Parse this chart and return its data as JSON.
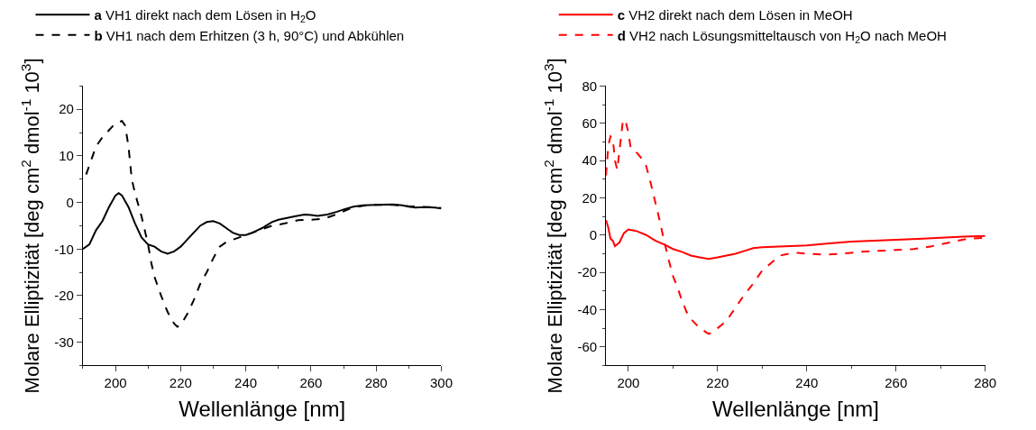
{
  "chart_data": [
    {
      "type": "line",
      "xlabel": "Wellenlänge [nm]",
      "ylabel": "Molare Elliptizität [deg cm$^{2}$ dmol$^{-1}$ 10$^{3}$]",
      "xlim": [
        190,
        300
      ],
      "xticks": [
        200,
        220,
        240,
        260,
        280,
        300
      ],
      "ylim": [
        -35,
        25
      ],
      "yticks": [
        -30,
        -20,
        -10,
        0,
        10,
        20
      ],
      "legend": "top",
      "series": [
        {
          "name": "a VH1 direkt nach dem Lösen in H$_{2}$O",
          "color": "#000000",
          "line_style": "solid",
          "x": [
            190,
            192,
            194,
            196,
            198,
            200,
            201,
            202,
            204,
            206,
            208,
            210,
            212,
            214,
            216,
            218,
            220,
            222,
            224,
            226,
            228,
            230,
            232,
            234,
            236,
            238,
            240,
            242,
            245,
            248,
            250,
            255,
            258,
            260,
            262,
            265,
            268,
            270,
            273,
            276,
            280,
            285,
            288,
            290,
            292,
            295,
            298,
            300
          ],
          "values": [
            -10,
            -9,
            -6,
            -4,
            -1,
            1.5,
            2,
            1.5,
            -1,
            -4.5,
            -7.5,
            -9,
            -9.5,
            -10.5,
            -11,
            -10.5,
            -9.5,
            -8,
            -6.5,
            -5,
            -4.2,
            -4,
            -4.5,
            -5.5,
            -6.5,
            -7,
            -7,
            -6.5,
            -5.5,
            -4.2,
            -3.7,
            -3,
            -2.6,
            -2.7,
            -2.9,
            -2.6,
            -2,
            -1.5,
            -0.9,
            -0.6,
            -0.5,
            -0.4,
            -0.6,
            -0.9,
            -1.1,
            -1,
            -1.1,
            -1.3
          ]
        },
        {
          "name": "b VH1 nach dem Erhitzen (3 h, 90°C) und Abkühlen",
          "color": "#000000",
          "line_style": "dashed",
          "x": [
            191,
            192,
            194,
            196,
            198,
            200,
            202,
            203,
            204,
            205,
            206,
            208,
            209,
            210,
            211,
            212,
            214,
            216,
            218,
            219,
            220,
            222,
            224,
            226,
            228,
            230,
            232,
            234,
            236,
            238,
            240,
            244,
            248,
            252,
            256,
            260,
            264,
            268,
            272,
            276,
            280,
            285,
            290,
            295,
            298,
            300
          ],
          "values": [
            6,
            8,
            12,
            14,
            15.5,
            17,
            17.5,
            16.5,
            12,
            5,
            2,
            -3,
            -6,
            -9,
            -13,
            -16,
            -20,
            -23.5,
            -26,
            -26.7,
            -26.3,
            -24,
            -21,
            -17.5,
            -15,
            -12,
            -9.5,
            -8.5,
            -8,
            -7.5,
            -7,
            -6,
            -5,
            -4.5,
            -3.8,
            -3.7,
            -3.5,
            -2.5,
            -1.3,
            -0.7,
            -0.5,
            -0.5,
            -0.8,
            -1,
            -1,
            -1.2
          ]
        }
      ]
    },
    {
      "type": "line",
      "xlabel": "Wellenlänge [nm]",
      "ylabel": "Molare Elliptizität [deg cm$^{2}$ dmol$^{-1}$ 10$^{3}$]",
      "xlim": [
        195,
        280
      ],
      "xticks": [
        200,
        220,
        240,
        260,
        280
      ],
      "ylim": [
        -70,
        80
      ],
      "yticks": [
        -60,
        -40,
        -20,
        0,
        20,
        40,
        60,
        80
      ],
      "legend": "top",
      "series": [
        {
          "name": "c VH2 direkt nach dem Lösen in MeOH",
          "color": "#ff0000",
          "line_style": "solid",
          "x": [
            195,
            195.5,
            196,
            196.5,
            197,
            197.5,
            198,
            199,
            200,
            201,
            202,
            204,
            206,
            208,
            210,
            212,
            214,
            216,
            218,
            220,
            222,
            224,
            226,
            228,
            230,
            235,
            240,
            245,
            250,
            255,
            260,
            265,
            270,
            275,
            280
          ],
          "values": [
            8,
            4,
            -2,
            -3,
            -6,
            -5,
            -4,
            1,
            3,
            2.5,
            2,
            0,
            -3,
            -5,
            -7.5,
            -9,
            -11,
            -12,
            -12.8,
            -12,
            -11,
            -10,
            -8.5,
            -7,
            -6.5,
            -6,
            -5.5,
            -4.5,
            -3.5,
            -3,
            -2.5,
            -2,
            -1.5,
            -0.8,
            -0.5
          ]
        },
        {
          "name": "d VH2 nach Lösungsmitteltausch von H$_{2}$O nach MeOH",
          "color": "#ff0000",
          "line_style": "dashed",
          "x": [
            195,
            195.5,
            196,
            196.5,
            197,
            197.5,
            198,
            198.8,
            199.5,
            200,
            200.5,
            201,
            202,
            203,
            204,
            205,
            206,
            207,
            208,
            209,
            210,
            211,
            212,
            213,
            214,
            216,
            218,
            219,
            220,
            222,
            224,
            226,
            228,
            230,
            232,
            234,
            236,
            238,
            240,
            244,
            248,
            252,
            256,
            260,
            264,
            268,
            272,
            276,
            280
          ],
          "values": [
            32,
            48,
            53,
            52,
            40,
            35,
            45,
            62,
            60,
            55,
            47,
            45,
            44,
            41,
            37,
            28,
            18,
            8,
            -3,
            -13,
            -22,
            -28,
            -35,
            -41,
            -45,
            -50,
            -53,
            -52,
            -50,
            -46,
            -39,
            -32,
            -26,
            -19,
            -15,
            -11,
            -10,
            -9.5,
            -10,
            -10.5,
            -10,
            -9,
            -8.5,
            -8,
            -7.5,
            -6,
            -4,
            -2,
            -1.5
          ]
        }
      ]
    }
  ]
}
